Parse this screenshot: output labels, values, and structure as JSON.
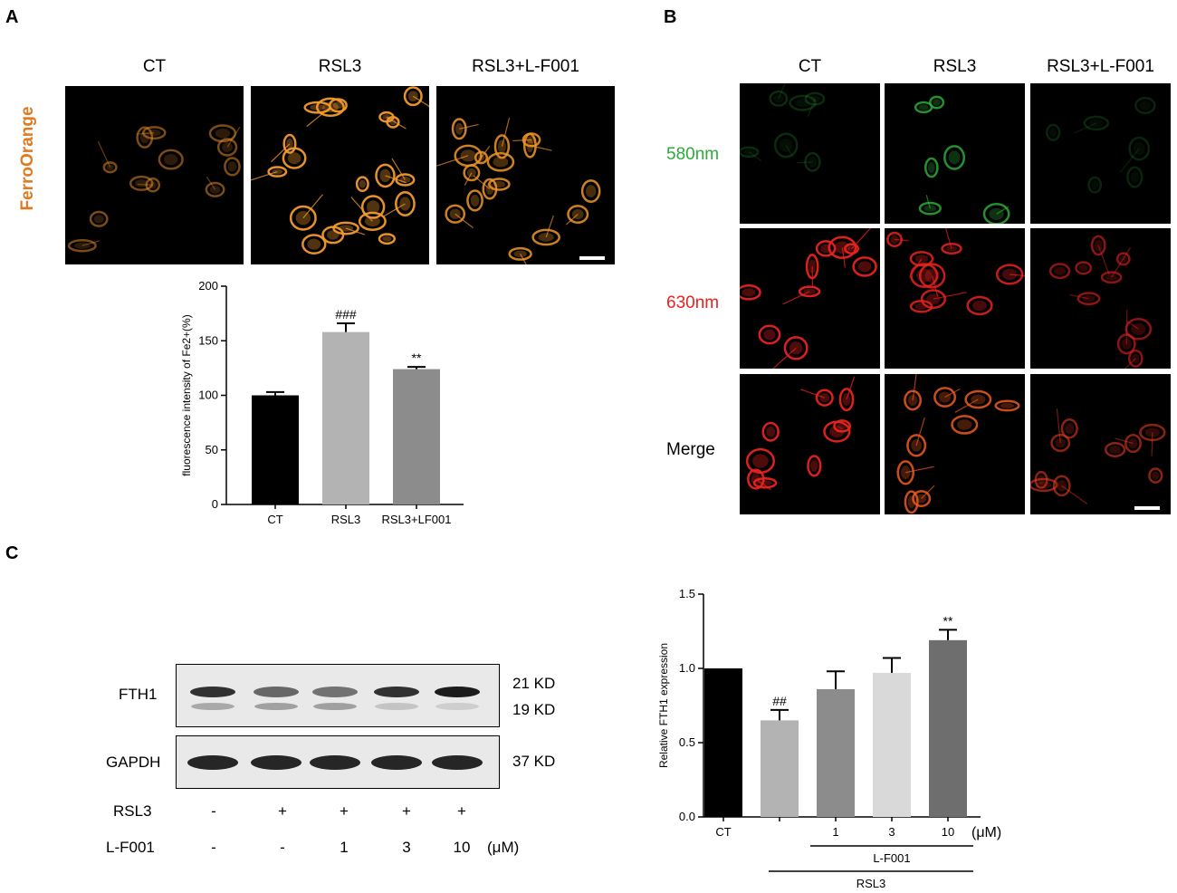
{
  "panels": {
    "A": {
      "letter": "A",
      "columns": [
        "CT",
        "RSL3",
        "RSL3+L-F001"
      ],
      "row_label": "FerroOrange",
      "row_color": "#e07a1f"
    },
    "B": {
      "letter": "B",
      "columns": [
        "CT",
        "RSL3",
        "RSL3+L-F001"
      ],
      "rows": [
        {
          "label": "580nm",
          "color": "#2eaa3a"
        },
        {
          "label": "630nm",
          "color": "#e8231e"
        },
        {
          "label": "Merge",
          "color": "#000000"
        }
      ]
    },
    "C": {
      "letter": "C",
      "blots": [
        {
          "label": "FTH1",
          "sizes": [
            "21 KD",
            "19 KD"
          ]
        },
        {
          "label": "GAPDH",
          "sizes": [
            "37 KD"
          ]
        }
      ],
      "treatments": [
        {
          "label": "RSL3",
          "values": [
            "-",
            "+",
            "+",
            "+",
            "+"
          ]
        },
        {
          "label": "L-F001",
          "values": [
            "-",
            "-",
            "1",
            "3",
            "10"
          ],
          "unit": "(μM)"
        }
      ]
    }
  },
  "chart_data": [
    {
      "type": "bar",
      "ylabel": "fluorescence intensity of Fe2+(%)",
      "categories": [
        "CT",
        "RSL3",
        "RSL3+LF001"
      ],
      "values": [
        100,
        158,
        124
      ],
      "errors": [
        3,
        8,
        2
      ],
      "annotations": [
        "",
        "###",
        "**"
      ],
      "colors": [
        "#000000",
        "#b3b3b3",
        "#8c8c8c"
      ],
      "ylim": [
        0,
        200
      ],
      "yticks": [
        0,
        50,
        100,
        150,
        200
      ]
    },
    {
      "type": "bar",
      "ylabel": "Relative FTH1 expression",
      "categories": [
        "CT",
        "",
        "1",
        "3",
        "10"
      ],
      "values": [
        1.0,
        0.65,
        0.86,
        0.97,
        1.19
      ],
      "errors": [
        0,
        0.07,
        0.12,
        0.1,
        0.07
      ],
      "annotations": [
        "",
        "##",
        "",
        "",
        "**"
      ],
      "colors": [
        "#000000",
        "#b3b3b3",
        "#8c8c8c",
        "#d9d9d9",
        "#6e6e6e"
      ],
      "ylim": [
        0,
        1.5
      ],
      "yticks": [
        "0.0",
        "0.5",
        "1.0",
        "1.5"
      ],
      "unit": "(μM)",
      "group_labels": [
        "L-F001",
        "RSL3"
      ]
    }
  ]
}
